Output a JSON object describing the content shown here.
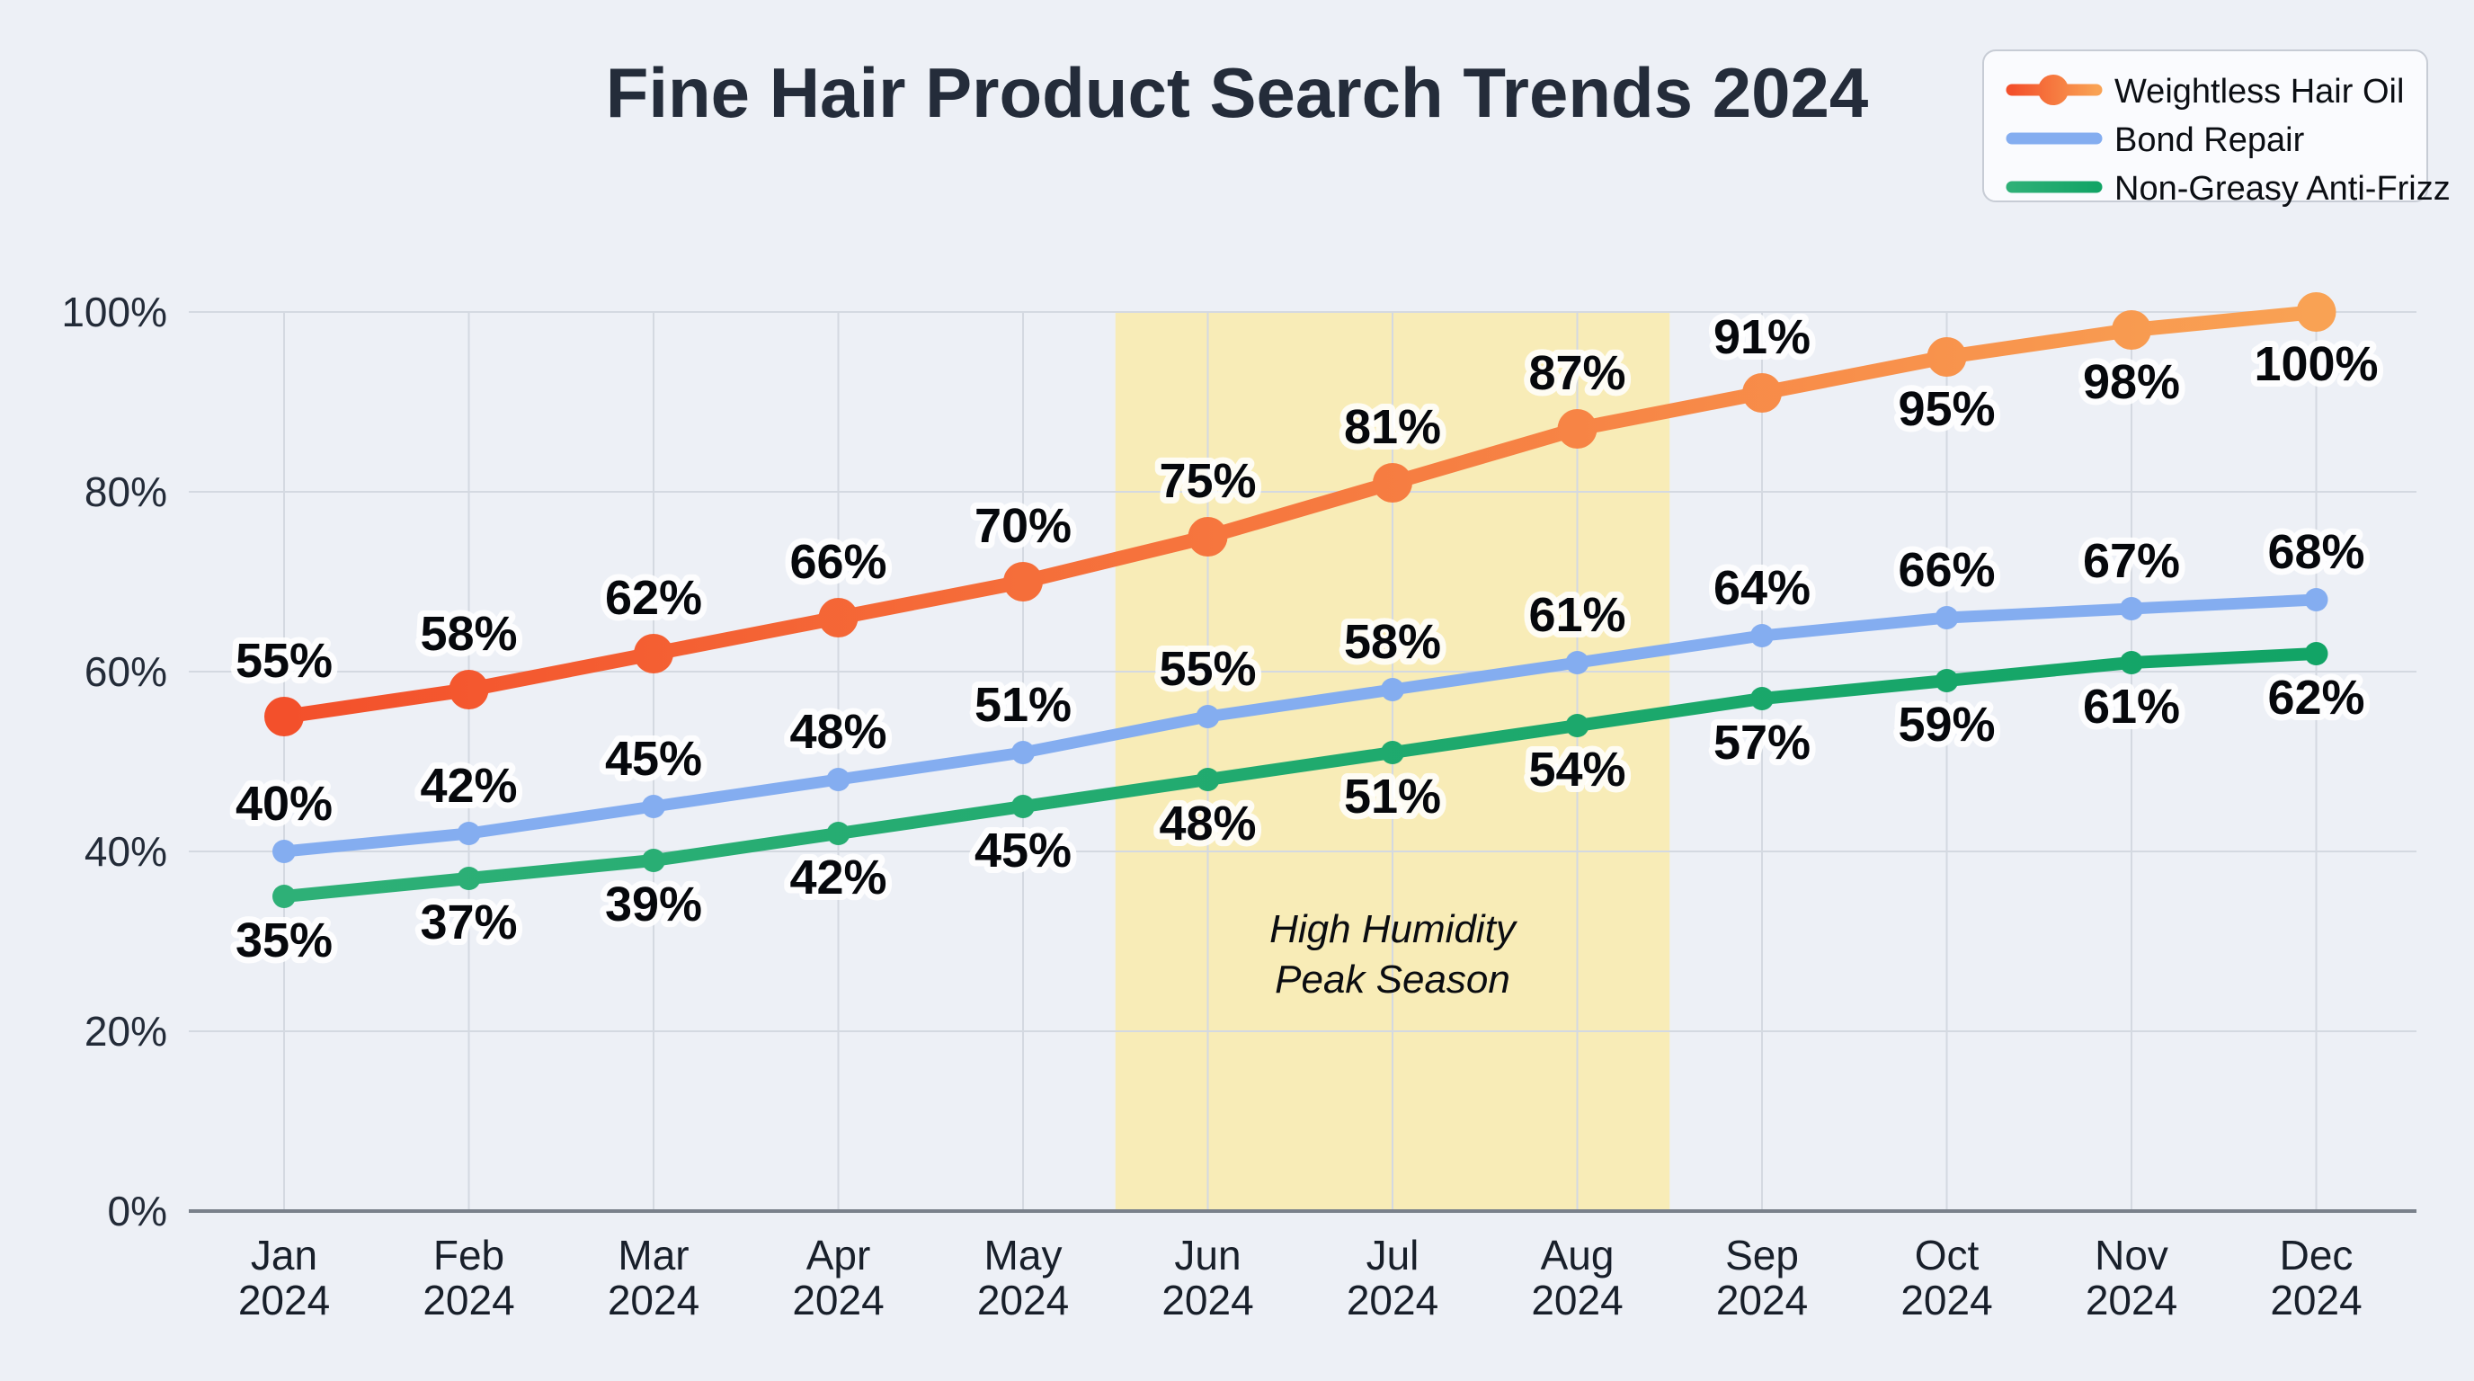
{
  "title": "Fine Hair Product Search Trends 2024",
  "chart_data": {
    "type": "line",
    "title": "Fine Hair Product Search Trends 2024",
    "xlabel": "",
    "ylabel": "",
    "categories": [
      "Jan 2024",
      "Feb 2024",
      "Mar 2024",
      "Apr 2024",
      "May 2024",
      "Jun 2024",
      "Jul 2024",
      "Aug 2024",
      "Sep 2024",
      "Oct 2024",
      "Nov 2024",
      "Dec 2024"
    ],
    "y_ticks": [
      0,
      20,
      40,
      60,
      80,
      100
    ],
    "y_tick_labels": [
      "0%",
      "20%",
      "40%",
      "60%",
      "80%",
      "100%"
    ],
    "ylim": [
      0,
      100
    ],
    "grid": true,
    "legend_position": "top-right",
    "series": [
      {
        "name": "Weightless Hair Oil",
        "values": [
          55,
          58,
          62,
          66,
          70,
          75,
          81,
          87,
          91,
          95,
          98,
          100
        ],
        "data_labels": [
          "55%",
          "58%",
          "62%",
          "66%",
          "70%",
          "75%",
          "81%",
          "87%",
          "91%",
          "95%",
          "98%",
          "100%"
        ],
        "color_start": "#F3502B",
        "color_end": "#F9A254",
        "marker_radius": 22,
        "line_width": 16,
        "label_side": [
          "above",
          "above",
          "above",
          "above",
          "above",
          "above",
          "above",
          "above",
          "above",
          "below",
          "below",
          "below"
        ]
      },
      {
        "name": "Bond Repair",
        "values": [
          40,
          42,
          45,
          48,
          51,
          55,
          58,
          61,
          64,
          66,
          67,
          68
        ],
        "data_labels": [
          "40%",
          "42%",
          "45%",
          "48%",
          "51%",
          "55%",
          "58%",
          "61%",
          "64%",
          "66%",
          "67%",
          "68%"
        ],
        "color_start": "#84ADF0",
        "color_end": "#84ADF0",
        "marker_radius": 13,
        "line_width": 13,
        "label_side": "above"
      },
      {
        "name": "Non-Greasy Anti-Frizz",
        "values": [
          35,
          37,
          39,
          42,
          45,
          48,
          51,
          54,
          57,
          59,
          61,
          62
        ],
        "data_labels": [
          "35%",
          "37%",
          "39%",
          "42%",
          "45%",
          "48%",
          "51%",
          "54%",
          "57%",
          "59%",
          "61%",
          "62%"
        ],
        "color_start": "#2EB077",
        "color_end": "#12A466",
        "marker_radius": 13,
        "line_width": 14,
        "label_side": "below"
      }
    ],
    "annotation_band": {
      "from": "Jun 2024",
      "to": "Aug 2024",
      "label_line1": "High Humidity",
      "label_line2": "Peak Season",
      "band_color": "#F8ECB7",
      "text_color": "#0A0C10"
    }
  },
  "colors": {
    "background": "#EDF0F6",
    "gridline": "#D4D9E1",
    "axis_line": "#7A818B",
    "title": "#242C3A",
    "tick_label": "#232B38",
    "month_label": "#181F2A",
    "data_label": "#06080C",
    "legend_bg": "#FAFBFE",
    "legend_border": "#C7CCD5",
    "legend_text": "#0B0E13"
  }
}
